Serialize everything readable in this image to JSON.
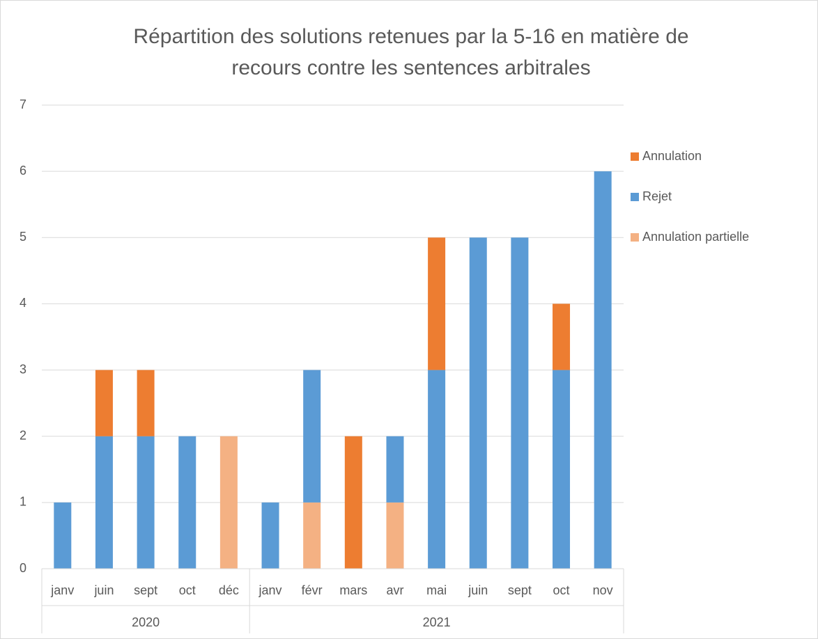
{
  "chart_data": {
    "type": "stacked_bar",
    "title": "Répartition des solutions retenues par la 5-16 en matière de recours contre les sentences arbitrales",
    "groups": [
      {
        "label": "2020",
        "categories": [
          "janv",
          "juin",
          "sept",
          "oct",
          "déc"
        ]
      },
      {
        "label": "2021",
        "categories": [
          "janv",
          "févr",
          "mars",
          "avr",
          "mai",
          "juin",
          "sept",
          "oct",
          "nov"
        ]
      }
    ],
    "series": [
      {
        "name": "Annulation",
        "color": "#ed7d31",
        "values": [
          0,
          1,
          1,
          0,
          0,
          0,
          0,
          2,
          0,
          2,
          0,
          0,
          1,
          0
        ]
      },
      {
        "name": "Rejet",
        "color": "#5b9bd5",
        "values": [
          1,
          2,
          2,
          2,
          0,
          1,
          2,
          0,
          1,
          3,
          5,
          5,
          3,
          6
        ]
      },
      {
        "name": "Annulation partielle",
        "color": "#f4b183",
        "values": [
          0,
          0,
          0,
          0,
          2,
          0,
          1,
          0,
          1,
          0,
          0,
          0,
          0,
          0
        ]
      }
    ],
    "ylim": [
      0,
      7
    ],
    "yticks": [
      0,
      1,
      2,
      3,
      4,
      5,
      6,
      7
    ],
    "grid": true,
    "legend": "right"
  }
}
